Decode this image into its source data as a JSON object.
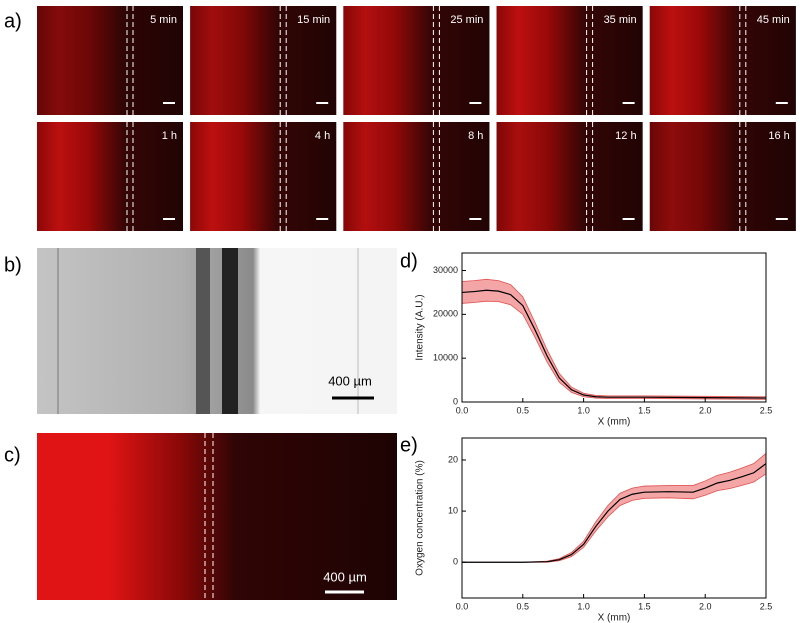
{
  "panels": {
    "a": {
      "label": "a)",
      "times": [
        "5 min",
        "15 min",
        "25 min",
        "35 min",
        "45 min",
        "1 h",
        "4 h",
        "8 h",
        "12 h",
        "16 h"
      ]
    },
    "b": {
      "label": "b)",
      "scale": "400 µm"
    },
    "c": {
      "label": "c)",
      "scale": "400 µm"
    },
    "d": {
      "label": "d)"
    },
    "e": {
      "label": "e)"
    }
  },
  "chart_data": [
    {
      "type": "line",
      "xlabel": "X (mm)",
      "ylabel": "Intensity (A.U.)",
      "x": [
        0,
        0.1,
        0.2,
        0.3,
        0.4,
        0.5,
        0.6,
        0.7,
        0.8,
        0.9,
        1.0,
        1.1,
        1.2,
        1.5,
        2.0,
        2.5
      ],
      "series": [
        {
          "color": "#000000",
          "band_color": "#f4a6a6",
          "values": [
            25000,
            25200,
            25500,
            25300,
            24500,
            22000,
            16500,
            10500,
            5500,
            2800,
            1600,
            1200,
            1100,
            1100,
            1000,
            900
          ],
          "errors": [
            2500,
            2500,
            2500,
            2400,
            2300,
            2000,
            1700,
            1400,
            1000,
            600,
            400,
            300,
            300,
            300,
            300,
            300
          ]
        }
      ],
      "xlim": [
        0,
        2.5
      ],
      "ylim": [
        0,
        34000
      ],
      "xticks": [
        {
          "value": 0,
          "label": "0.0"
        },
        0.5,
        {
          "value": 1,
          "label": "1.0"
        },
        1.5,
        {
          "value": 2,
          "label": "2.0"
        },
        2.5
      ],
      "yticks": [
        0,
        10000,
        20000,
        30000
      ]
    },
    {
      "type": "line",
      "xlabel": "X (mm)",
      "ylabel": "Oxygen concentration (%)",
      "x": [
        0,
        0.5,
        0.7,
        0.8,
        0.9,
        1.0,
        1.1,
        1.2,
        1.3,
        1.4,
        1.5,
        1.7,
        1.9,
        2.0,
        2.1,
        2.2,
        2.3,
        2.4,
        2.5
      ],
      "series": [
        {
          "color": "#000000",
          "band_color": "#f4a6a6",
          "values": [
            0,
            0,
            0.1,
            0.5,
            1.5,
            3.5,
            7,
            10,
            12.3,
            13.3,
            13.7,
            13.8,
            13.7,
            14.5,
            15.5,
            16,
            16.7,
            17.5,
            19.3
          ],
          "errors": [
            0,
            0,
            0.1,
            0.2,
            0.4,
            0.6,
            0.9,
            1.1,
            1.2,
            1.2,
            1.2,
            1.2,
            1.3,
            1.4,
            1.5,
            1.6,
            1.7,
            1.8,
            2.0
          ]
        }
      ],
      "xlim": [
        0,
        2.5
      ],
      "ylim": [
        -7,
        24.3
      ],
      "xticks": [
        {
          "value": 0,
          "label": "0.0"
        },
        0.5,
        {
          "value": 1,
          "label": "1.0"
        },
        1.5,
        {
          "value": 2,
          "label": "2.0"
        },
        2.5
      ],
      "yticks": [
        0,
        10,
        20
      ]
    }
  ]
}
